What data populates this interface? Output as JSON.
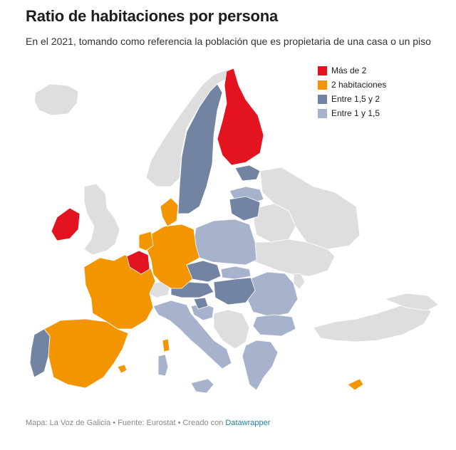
{
  "title": "Ratio de habitaciones por persona",
  "subtitle": "En el 2021, tomando como referencia la población que es propietaria de una casa o un piso",
  "colors": {
    "mas_de_2": "#e3141f",
    "dos": "#f39500",
    "entre_15_2": "#7284a1",
    "entre_1_15": "#a7b3cc",
    "no_data": "#dedede"
  },
  "legend": [
    {
      "label": "Más de 2",
      "color": "#e3141f"
    },
    {
      "label": "2 habitaciones",
      "color": "#f39500"
    },
    {
      "label": "Entre 1,5 y 2",
      "color": "#7284a1"
    },
    {
      "label": "Entre 1 y 1,5",
      "color": "#a7b3cc"
    }
  ],
  "footer": {
    "text": "Mapa: La Voz de Galicia • Fuente: Eurostat • Creado con ",
    "link": "Datawrapper"
  },
  "map_data": {
    "mas_de_2": [
      "Finlandia",
      "Irlanda",
      "Bélgica"
    ],
    "dos": [
      "España",
      "Francia",
      "Alemania",
      "Países Bajos",
      "Dinamarca",
      "Luxemburgo",
      "Malta",
      "Chipre"
    ],
    "entre_15_2": [
      "Suecia",
      "Portugal",
      "Austria",
      "Eslovenia",
      "República Checa",
      "Hungría",
      "Letonia",
      "Estonia",
      "Lituania"
    ],
    "entre_1_15": [
      "Italia",
      "Polonia",
      "Eslovaquia",
      "Croacia",
      "Rumanía",
      "Bulgaria",
      "Grecia"
    ]
  }
}
